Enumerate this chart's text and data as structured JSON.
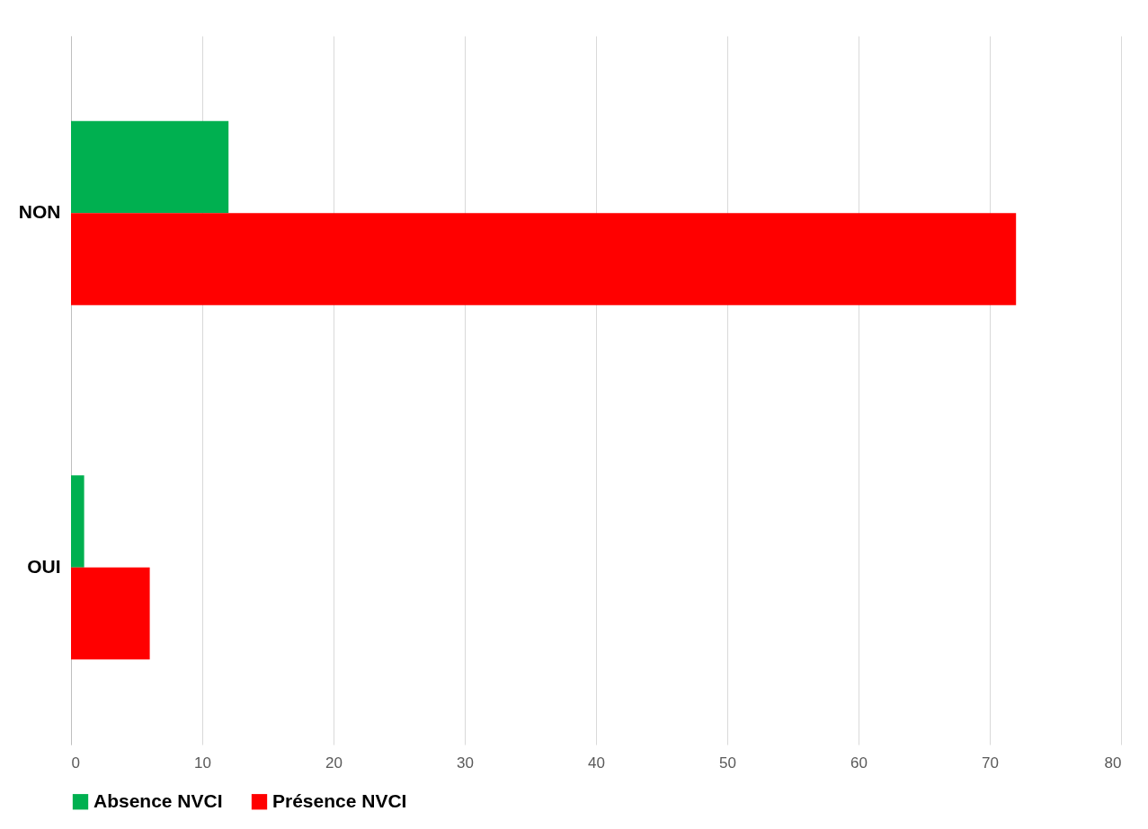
{
  "chart_data": {
    "type": "bar",
    "orientation": "horizontal",
    "categories": [
      "NON",
      "OUI"
    ],
    "series": [
      {
        "name": "Absence NVCI",
        "color": "#00b050",
        "values": [
          12,
          1
        ]
      },
      {
        "name": "Présence NVCI",
        "color": "#ff0000",
        "values": [
          72,
          6
        ]
      }
    ],
    "xlim": [
      0,
      80
    ],
    "xticks": [
      0,
      10,
      20,
      30,
      40,
      50,
      60,
      70,
      80
    ],
    "grid": "x",
    "legend": "bottom"
  }
}
